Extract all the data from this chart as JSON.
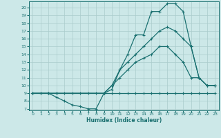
{
  "xlabel": "Humidex (Indice chaleur)",
  "bg_color": "#cce8e8",
  "line_color": "#1a7070",
  "grid_color": "#aacccc",
  "xlim": [
    -0.5,
    23.5
  ],
  "ylim": [
    6.8,
    20.8
  ],
  "xticks": [
    0,
    1,
    2,
    3,
    4,
    5,
    6,
    7,
    8,
    9,
    10,
    11,
    12,
    13,
    14,
    15,
    16,
    17,
    18,
    19,
    20,
    21,
    22,
    23
  ],
  "yticks": [
    7,
    8,
    9,
    10,
    11,
    12,
    13,
    14,
    15,
    16,
    17,
    18,
    19,
    20
  ],
  "line1_x": [
    0,
    1,
    2,
    3,
    4,
    5,
    6,
    7,
    8,
    9,
    10,
    11,
    12,
    13,
    14,
    15,
    16,
    17,
    18,
    19,
    20,
    21,
    22,
    23
  ],
  "line1_y": [
    9,
    9,
    9,
    9,
    9,
    9,
    9,
    9,
    9,
    9,
    9,
    9,
    9,
    9,
    9,
    9,
    9,
    9,
    9,
    9,
    9,
    9,
    9,
    9
  ],
  "line2_x": [
    0,
    2,
    3,
    9,
    10,
    11,
    12,
    13,
    14,
    15,
    16,
    17,
    18,
    19,
    20,
    21,
    22,
    23
  ],
  "line2_y": [
    9,
    9,
    9,
    9,
    10,
    11,
    12,
    13,
    13.5,
    14,
    15,
    15,
    14,
    13,
    11,
    11,
    10,
    10
  ],
  "line3_x": [
    0,
    2,
    3,
    9,
    10,
    11,
    12,
    13,
    14,
    15,
    16,
    17,
    18,
    19,
    20,
    21,
    22,
    23
  ],
  "line3_y": [
    9,
    9,
    9,
    9,
    10,
    12,
    13,
    14,
    15,
    16,
    17,
    17.5,
    17,
    16,
    15,
    11,
    10,
    10
  ],
  "line4_x": [
    0,
    1,
    2,
    3,
    4,
    5,
    6,
    7,
    8,
    9,
    10,
    11,
    12,
    13,
    14,
    15,
    16,
    17,
    18,
    19,
    20,
    21,
    22,
    23
  ],
  "line4_y": [
    9,
    9,
    9,
    8.5,
    8,
    7.5,
    7.3,
    7.0,
    7.0,
    9,
    9.5,
    12,
    14,
    16.5,
    16.5,
    19.5,
    19.5,
    20.5,
    20.5,
    19.5,
    15,
    11,
    10,
    10
  ]
}
